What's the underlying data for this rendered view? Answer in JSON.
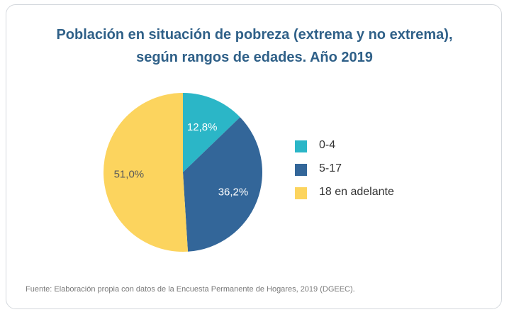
{
  "chart_data": {
    "type": "pie",
    "title_line1": "Población en situación de pobreza (extrema y no extrema),",
    "title_line2": "según rangos de edades. Año 2019",
    "slices": [
      {
        "label": "0-4",
        "value": 12.8,
        "value_label": "12,8%",
        "color": "#2bb6c7",
        "text_color": "#ffffff"
      },
      {
        "label": "5-17",
        "value": 36.2,
        "value_label": "36,2%",
        "color": "#336699",
        "text_color": "#ffffff"
      },
      {
        "label": "18 en adelante",
        "value": 51.0,
        "value_label": "51,0%",
        "color": "#fcd45e",
        "text_color": "#5a5a5a"
      }
    ],
    "start_angle": "12 o'clock",
    "direction": "clockwise",
    "legend_position": "right"
  },
  "source": "Fuente: Elaboración propia con datos de la Encuesta Permanente de Hogares, 2019 (DGEEC)."
}
